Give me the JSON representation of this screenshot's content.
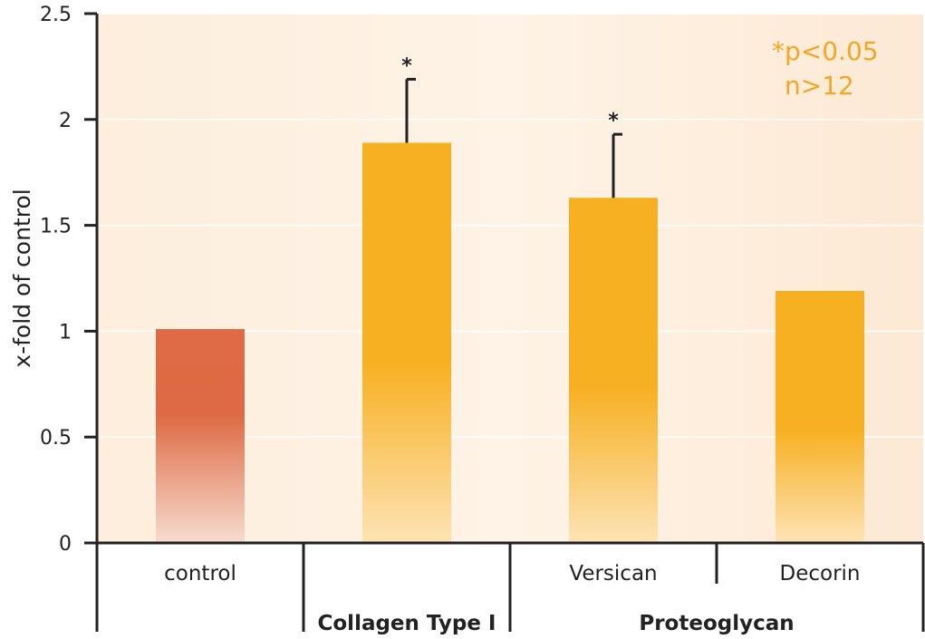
{
  "chart_data": {
    "type": "bar",
    "ylabel": "x-fold of control",
    "ylim": [
      0,
      2.5
    ],
    "yticks": [
      "0",
      "0.5",
      "1",
      "1.5",
      "2",
      "2.5"
    ],
    "categories": [
      "control",
      "Collagen Type I",
      "Versican",
      "Decorin"
    ],
    "values": [
      1.01,
      1.89,
      1.63,
      1.19
    ],
    "error_upper": [
      null,
      2.19,
      1.93,
      null
    ],
    "significance": [
      "",
      "*",
      "*",
      ""
    ],
    "bar_colors": [
      "#de6b45",
      "#f7b022",
      "#f7b022",
      "#f7b022"
    ],
    "tick_labels": [
      "control",
      "",
      "Versican",
      "Decorin"
    ],
    "group_labels": [
      "Collagen Type I",
      "Proteoglycan"
    ],
    "annotation": {
      "line1": "*p<0.05",
      "line2": "n>12"
    },
    "grid": true
  }
}
